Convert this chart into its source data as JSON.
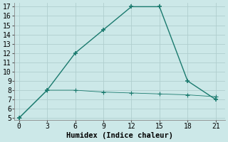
{
  "line1_x": [
    0,
    3,
    6,
    9,
    12,
    15,
    18,
    21
  ],
  "line1_y": [
    5,
    8,
    12,
    14.5,
    17,
    17,
    9,
    7
  ],
  "line2_x": [
    0,
    3,
    6,
    9,
    12,
    15,
    18,
    21
  ],
  "line2_y": [
    5,
    8,
    8,
    7.8,
    7.7,
    7.6,
    7.5,
    7.3
  ],
  "line_color": "#1a7a6e",
  "bg_color": "#cce8e8",
  "grid_color": "#b0cece",
  "xlabel": "Humidex (Indice chaleur)",
  "xlim": [
    -0.5,
    22
  ],
  "ylim": [
    4.8,
    17.4
  ],
  "yticks": [
    5,
    6,
    7,
    8,
    9,
    10,
    11,
    12,
    13,
    14,
    15,
    16,
    17
  ],
  "xticks": [
    0,
    3,
    6,
    9,
    12,
    15,
    18,
    21
  ],
  "xlabel_fontsize": 7.5,
  "tick_fontsize": 7
}
